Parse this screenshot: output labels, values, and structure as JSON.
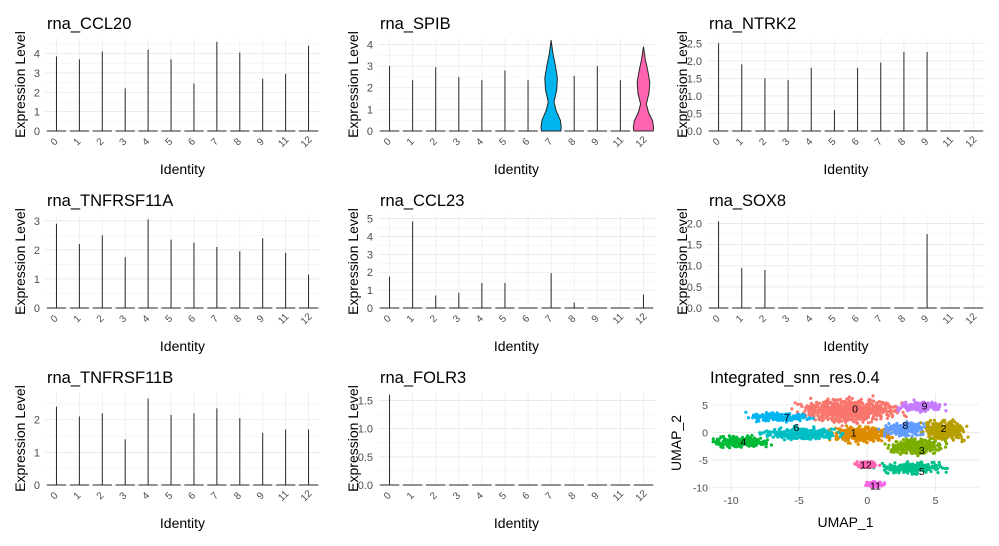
{
  "figure": {
    "x_axis_label": "Identity",
    "y_axis_label": "Expression Level",
    "identities": [
      "0",
      "1",
      "2",
      "3",
      "4",
      "5",
      "6",
      "7",
      "8",
      "9",
      "11",
      "12"
    ],
    "cluster_colors": {
      "0": "#F8766D",
      "1": "#DE8C00",
      "2": "#B79F00",
      "3": "#7CAE00",
      "4": "#00BA38",
      "5": "#00C08B",
      "6": "#00BFC4",
      "7": "#00B4F0",
      "8": "#619CFF",
      "9": "#C77CFF",
      "11": "#F564E3",
      "12": "#FF64B0"
    }
  },
  "chart_data": [
    {
      "type": "violin",
      "title": "rna_CCL20",
      "ylim": [
        0,
        4.8
      ],
      "yticks": [
        0,
        1,
        2,
        3,
        4
      ],
      "max_values": [
        3.85,
        3.7,
        4.1,
        2.2,
        4.2,
        3.7,
        2.45,
        4.6,
        4.05,
        2.7,
        2.95,
        4.4
      ]
    },
    {
      "type": "violin",
      "title": "rna_SPIB",
      "ylim": [
        0,
        4.3
      ],
      "yticks": [
        0,
        1,
        2,
        3,
        4
      ],
      "max_values": [
        3.0,
        2.35,
        2.95,
        2.5,
        2.35,
        2.8,
        2.35,
        4.2,
        2.55,
        3.0,
        2.35,
        3.9
      ],
      "filled_violins": [
        "7",
        "12"
      ]
    },
    {
      "type": "violin",
      "title": "rna_NTRK2",
      "ylim": [
        0,
        2.65
      ],
      "yticks": [
        0.0,
        0.5,
        1.0,
        1.5,
        2.0,
        2.5
      ],
      "max_values": [
        2.5,
        1.9,
        1.5,
        1.45,
        1.8,
        0.6,
        1.8,
        1.95,
        2.25,
        2.25,
        0,
        0
      ]
    },
    {
      "type": "violin",
      "title": "rna_TNFRSF11A",
      "ylim": [
        0,
        3.2
      ],
      "yticks": [
        0,
        1,
        2,
        3
      ],
      "max_values": [
        2.9,
        2.2,
        2.5,
        1.75,
        3.05,
        2.35,
        2.25,
        2.1,
        1.95,
        2.4,
        1.9,
        1.15
      ]
    },
    {
      "type": "violin",
      "title": "rna_CCL23",
      "ylim": [
        0,
        5.2
      ],
      "yticks": [
        0,
        1,
        2,
        3,
        4,
        5
      ],
      "max_values": [
        1.75,
        4.85,
        0.7,
        0.85,
        1.4,
        1.4,
        0,
        1.95,
        0.3,
        0,
        0,
        0.75
      ]
    },
    {
      "type": "violin",
      "title": "rna_SOX8",
      "ylim": [
        0,
        2.2
      ],
      "yticks": [
        0.0,
        0.5,
        1.0,
        1.5,
        2.0
      ],
      "max_values": [
        2.05,
        0.95,
        0.9,
        0,
        0,
        0,
        0,
        0,
        0,
        1.75,
        0,
        0
      ]
    },
    {
      "type": "violin",
      "title": "rna_TNFRSF11B",
      "ylim": [
        0,
        2.85
      ],
      "yticks": [
        0,
        1,
        2
      ],
      "max_values": [
        2.4,
        2.1,
        2.2,
        1.4,
        2.65,
        2.15,
        2.2,
        2.35,
        2.05,
        1.6,
        1.7,
        1.7
      ]
    },
    {
      "type": "violin",
      "title": "rna_FOLR3",
      "ylim": [
        0,
        1.65
      ],
      "yticks": [
        0.0,
        0.5,
        1.0,
        1.5
      ],
      "max_values": [
        1.6,
        0,
        0,
        0,
        0,
        0,
        0,
        0,
        0,
        0,
        0,
        0
      ]
    },
    {
      "type": "scatter",
      "title": "Integrated_snn_res.0.4",
      "xlabel": "UMAP_1",
      "ylabel": "UMAP_2",
      "xlim": [
        -11.4,
        8.2
      ],
      "ylim": [
        -10.8,
        7.0
      ],
      "xticks": [
        -10,
        -5,
        0,
        5
      ],
      "yticks": [
        -10,
        -5,
        0,
        5
      ],
      "clusters": [
        {
          "name": "0",
          "center": [
            -1.3,
            4.0
          ],
          "spread": [
            2.8,
            1.7
          ]
        },
        {
          "name": "1",
          "center": [
            -0.5,
            -0.3
          ],
          "spread": [
            1.8,
            1.2
          ]
        },
        {
          "name": "2",
          "center": [
            5.6,
            0.4
          ],
          "spread": [
            1.4,
            1.4
          ]
        },
        {
          "name": "3",
          "center": [
            3.6,
            -2.5
          ],
          "spread": [
            1.6,
            1.2
          ]
        },
        {
          "name": "4",
          "center": [
            -9.3,
            -1.7
          ],
          "spread": [
            1.7,
            0.8
          ]
        },
        {
          "name": "5",
          "center": [
            3.4,
            -6.4
          ],
          "spread": [
            1.8,
            0.8
          ]
        },
        {
          "name": "6",
          "center": [
            -4.8,
            -0.2
          ],
          "spread": [
            2.2,
            0.9
          ]
        },
        {
          "name": "7",
          "center": [
            -6.2,
            2.8
          ],
          "spread": [
            1.9,
            0.6
          ]
        },
        {
          "name": "8",
          "center": [
            2.7,
            0.6
          ],
          "spread": [
            1.3,
            1.0
          ]
        },
        {
          "name": "9",
          "center": [
            4.0,
            4.7
          ],
          "spread": [
            1.3,
            0.7
          ]
        },
        {
          "name": "11",
          "center": [
            0.5,
            -9.4
          ],
          "spread": [
            0.6,
            0.4
          ]
        },
        {
          "name": "12",
          "center": [
            0.0,
            -5.8
          ],
          "spread": [
            0.7,
            0.5
          ]
        }
      ],
      "cluster_labels": [
        {
          "name": "0",
          "x": -0.9,
          "y": 4.4
        },
        {
          "name": "1",
          "x": -1.0,
          "y": 0.0
        },
        {
          "name": "2",
          "x": 5.6,
          "y": 0.8
        },
        {
          "name": "3",
          "x": 4.0,
          "y": -3.2
        },
        {
          "name": "4",
          "x": -9.1,
          "y": -1.6
        },
        {
          "name": "5",
          "x": 4.0,
          "y": -7.0
        },
        {
          "name": "6",
          "x": -5.2,
          "y": 1.0
        },
        {
          "name": "7",
          "x": -5.9,
          "y": 2.8
        },
        {
          "name": "8",
          "x": 2.8,
          "y": 1.4
        },
        {
          "name": "9",
          "x": 4.2,
          "y": 4.9
        },
        {
          "name": "11",
          "x": 0.6,
          "y": -9.6
        },
        {
          "name": "12",
          "x": -0.1,
          "y": -5.8
        }
      ]
    }
  ]
}
